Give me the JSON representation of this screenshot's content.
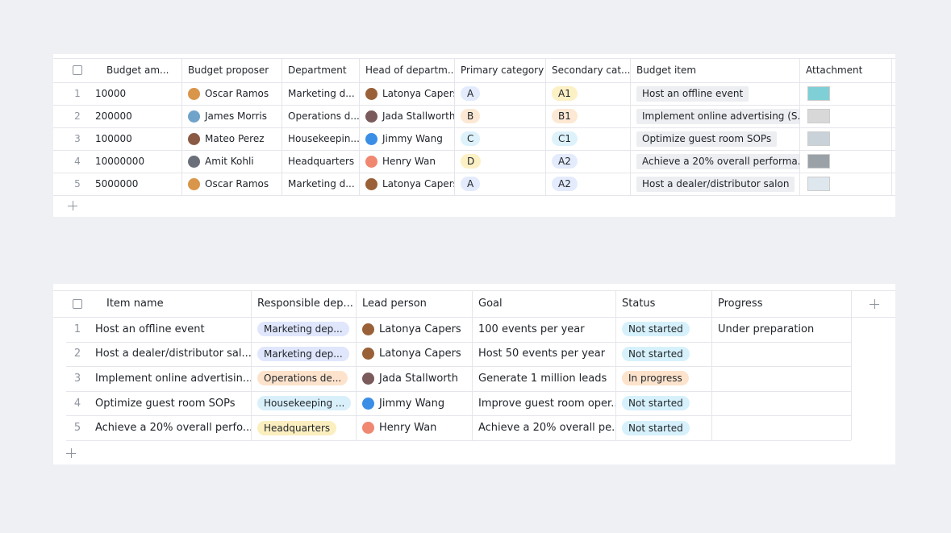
{
  "table1": {
    "columns": [
      "Budget am...",
      "Budget proposer",
      "Department",
      "Head of departm...",
      "Primary category",
      "Secondary cat...",
      "Budget item",
      "Attachment"
    ],
    "rows": [
      [
        1,
        10000,
        "Oscar Ramos",
        "Marketing d...",
        "Latonya Capers",
        "A",
        "A1",
        "Host an offline event"
      ],
      [
        2,
        200000,
        "James Morris",
        "Operations d...",
        "Jada Stallworth",
        "B",
        "B1",
        "Implement online advertising (S..."
      ],
      [
        3,
        100000,
        "Mateo Perez",
        "Housekeepin...",
        "Jimmy Wang",
        "C",
        "C1",
        "Optimize guest room SOPs"
      ],
      [
        4,
        10000000,
        "Amit Kohli",
        "Headquarters",
        "Henry Wan",
        "D",
        "A2",
        "Achieve a 20% overall performa..."
      ],
      [
        5,
        5000000,
        "Oscar Ramos",
        "Marketing d...",
        "Latonya Capers",
        "A",
        "A2",
        "Host a dealer/distributor salon"
      ]
    ]
  },
  "table2": {
    "columns": [
      "Item name",
      "Responsible dep...",
      "Lead person",
      "Goal",
      "Status",
      "Progress"
    ],
    "rows": [
      [
        1,
        "Host an offline event",
        "Marketing dep...",
        "Latonya Capers",
        "100 events per year",
        "Not started",
        "Under preparation"
      ],
      [
        2,
        "Host a dealer/distributor sal...",
        "Marketing dep...",
        "Latonya Capers",
        "Host 50 events per year",
        "Not started"
      ],
      [
        3,
        "Implement online advertisin...",
        "Operations de...",
        "Jada Stallworth",
        "Generate 1 million leads",
        "In progress"
      ],
      [
        4,
        "Optimize guest room SOPs",
        "Housekeeping ...",
        "Jimmy Wang",
        "Improve guest room oper...",
        "Not started"
      ],
      [
        5,
        "Achieve a 20% overall perfo...",
        "Headquarters",
        "Henry Wan",
        "Achieve a 20% overall pe...",
        "Not started"
      ]
    ]
  }
}
